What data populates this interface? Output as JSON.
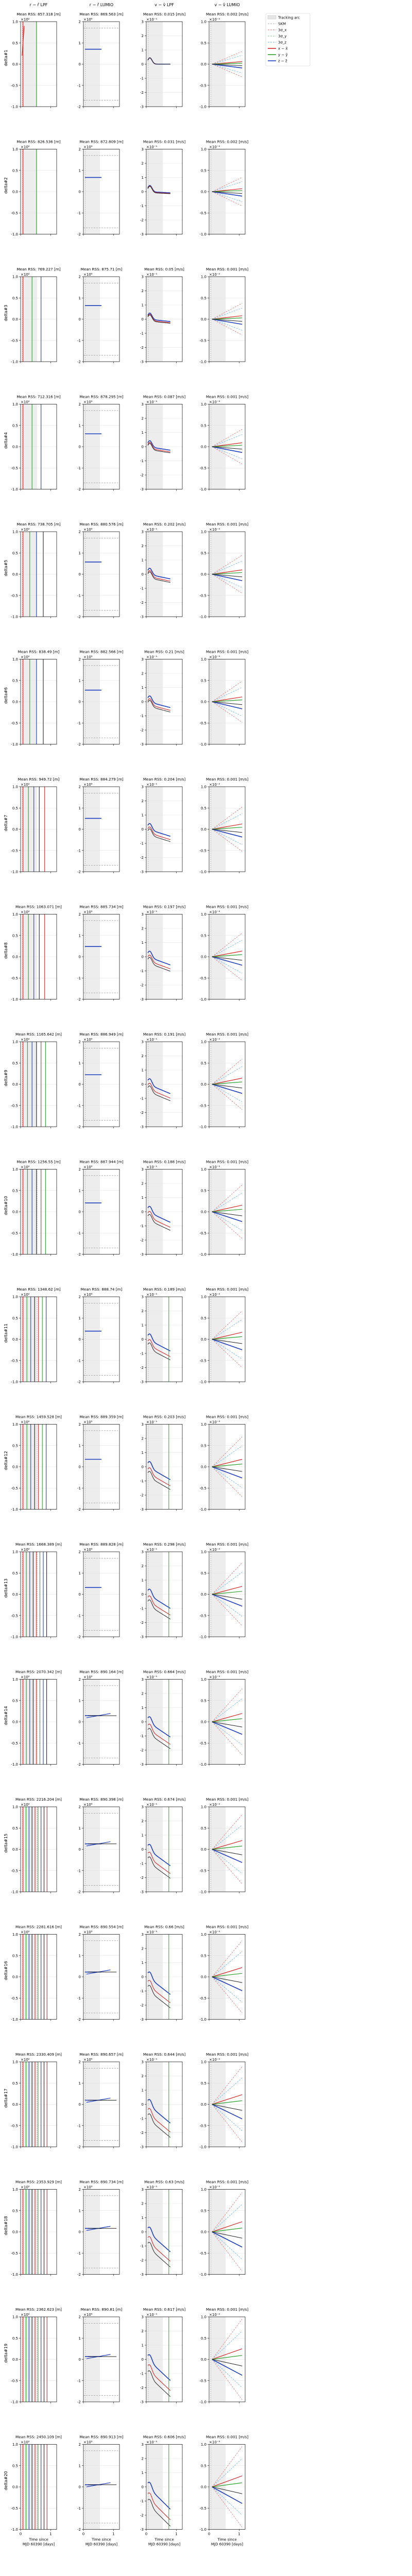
{
  "columns": [
    {
      "title": "r − r̂ LPF",
      "unit": "m",
      "yscale": "×10²",
      "ylim": [
        -1,
        1
      ],
      "yticks": [
        "-1.0",
        "-0.5",
        "0.0",
        "0.5",
        "1.0"
      ]
    },
    {
      "title": "r − r̂ LUMIO",
      "unit": "m",
      "yscale": "×10⁵",
      "ylim": [
        -2,
        2
      ],
      "yticks": [
        "-2",
        "-1",
        "0",
        "1",
        "2"
      ]
    },
    {
      "title": "v − v̂ LPF",
      "unit": "m/s",
      "yscale": "×10⁻¹",
      "ylim": [
        -3,
        3
      ],
      "yticks": [
        "-3",
        "-2",
        "-1",
        "0",
        "1",
        "2",
        "3"
      ]
    },
    {
      "title": "v − v̂ LUMIO",
      "unit": "m/s",
      "yscale": "×10⁻²",
      "ylim": [
        -1,
        1
      ],
      "yticks": [
        "-1.0",
        "-0.5",
        "0.0",
        "0.5",
        "1.0"
      ]
    }
  ],
  "xlabel_line1": "Time since",
  "xlabel_line2": "MJD 60390 [days]",
  "xticks": [
    "0",
    "1"
  ],
  "legend": [
    {
      "label": "Tracking arc",
      "color": "#9e9e9e",
      "style": "band"
    },
    {
      "label": "SKM",
      "color": "#b0b0b0",
      "style": "dash"
    },
    {
      "label": "3σ_x",
      "color": "#e57373",
      "style": "dash"
    },
    {
      "label": "3σ_y",
      "color": "#81c784",
      "style": "dash"
    },
    {
      "label": "3σ_z",
      "color": "#64b5f6",
      "style": "dash"
    },
    {
      "label": "x − x̂",
      "color": "#d62728",
      "style": "solid"
    },
    {
      "label": "y − ŷ",
      "color": "#2ca02c",
      "style": "solid"
    },
    {
      "label": "z − ẑ",
      "color": "#1f3fbf",
      "style": "solid"
    }
  ],
  "chart_data": {
    "type": "line",
    "title": "",
    "rows": [
      {
        "ylabel": "delta#1",
        "rss": [
          "Mean RSS: 857.318 [m]",
          "Mean RSS: 869.563 [m]",
          "Mean RSS: 0.015 [m/s]",
          "Mean RSS: 0.002 [m/s]"
        ]
      },
      {
        "ylabel": "delta#2",
        "rss": [
          "Mean RSS: 826.536 [m]",
          "Mean RSS: 872.809 [m]",
          "Mean RSS: 0.031 [m/s]",
          "Mean RSS: 0.002 [m/s]"
        ]
      },
      {
        "ylabel": "delta#3",
        "rss": [
          "Mean RSS: 769.227 [m]",
          "Mean RSS: 875.71 [m]",
          "Mean RSS: 0.05 [m/s]",
          "Mean RSS: 0.001 [m/s]"
        ]
      },
      {
        "ylabel": "delta#4",
        "rss": [
          "Mean RSS: 712.316 [m]",
          "Mean RSS: 878.295 [m]",
          "Mean RSS: 0.087 [m/s]",
          "Mean RSS: 0.001 [m/s]"
        ]
      },
      {
        "ylabel": "delta#5",
        "rss": [
          "Mean RSS: 738.705 [m]",
          "Mean RSS: 880.576 [m]",
          "Mean RSS: 0.202 [m/s]",
          "Mean RSS: 0.001 [m/s]"
        ]
      },
      {
        "ylabel": "delta#6",
        "rss": [
          "Mean RSS: 838.49 [m]",
          "Mean RSS: 882.566 [m]",
          "Mean RSS: 0.21 [m/s]",
          "Mean RSS: 0.001 [m/s]"
        ]
      },
      {
        "ylabel": "delta#7",
        "rss": [
          "Mean RSS: 949.72 [m]",
          "Mean RSS: 884.279 [m]",
          "Mean RSS: 0.204 [m/s]",
          "Mean RSS: 0.001 [m/s]"
        ]
      },
      {
        "ylabel": "delta#8",
        "rss": [
          "Mean RSS: 1063.071 [m]",
          "Mean RSS: 885.734 [m]",
          "Mean RSS: 0.197 [m/s]",
          "Mean RSS: 0.001 [m/s]"
        ]
      },
      {
        "ylabel": "delta#9",
        "rss": [
          "Mean RSS: 1165.642 [m]",
          "Mean RSS: 886.949 [m]",
          "Mean RSS: 0.191 [m/s]",
          "Mean RSS: 0.001 [m/s]"
        ]
      },
      {
        "ylabel": "delta#10",
        "rss": [
          "Mean RSS: 1256.55 [m]",
          "Mean RSS: 887.944 [m]",
          "Mean RSS: 0.188 [m/s]",
          "Mean RSS: 0.001 [m/s]"
        ]
      },
      {
        "ylabel": "delta#11",
        "rss": [
          "Mean RSS: 1348.62 [m]",
          "Mean RSS: 888.74 [m]",
          "Mean RSS: 0.189 [m/s]",
          "Mean RSS: 0.001 [m/s]"
        ]
      },
      {
        "ylabel": "delta#12",
        "rss": [
          "Mean RSS: 1459.528 [m]",
          "Mean RSS: 889.359 [m]",
          "Mean RSS: 0.203 [m/s]",
          "Mean RSS: 0.001 [m/s]"
        ]
      },
      {
        "ylabel": "delta#13",
        "rss": [
          "Mean RSS: 1668.389 [m]",
          "Mean RSS: 889.828 [m]",
          "Mean RSS: 0.298 [m/s]",
          "Mean RSS: 0.001 [m/s]"
        ]
      },
      {
        "ylabel": "delta#14",
        "rss": [
          "Mean RSS: 2070.342 [m]",
          "Mean RSS: 890.164 [m]",
          "Mean RSS: 0.664 [m/s]",
          "Mean RSS: 0.001 [m/s]"
        ]
      },
      {
        "ylabel": "delta#15",
        "rss": [
          "Mean RSS: 2216.204 [m]",
          "Mean RSS: 890.398 [m]",
          "Mean RSS: 0.674 [m/s]",
          "Mean RSS: 0.001 [m/s]"
        ]
      },
      {
        "ylabel": "delta#16",
        "rss": [
          "Mean RSS: 2281.616 [m]",
          "Mean RSS: 890.554 [m]",
          "Mean RSS: 0.66 [m/s]",
          "Mean RSS: 0.001 [m/s]"
        ]
      },
      {
        "ylabel": "delta#17",
        "rss": [
          "Mean RSS: 2330.409 [m]",
          "Mean RSS: 890.657 [m]",
          "Mean RSS: 0.644 [m/s]",
          "Mean RSS: 0.001 [m/s]"
        ]
      },
      {
        "ylabel": "delta#18",
        "rss": [
          "Mean RSS: 2353.929 [m]",
          "Mean RSS: 890.734 [m]",
          "Mean RSS: 0.63 [m/s]",
          "Mean RSS: 0.001 [m/s]"
        ]
      },
      {
        "ylabel": "delta#19",
        "rss": [
          "Mean RSS: 2362.623 [m]",
          "Mean RSS: 890.81 [m]",
          "Mean RSS: 0.617 [m/s]",
          "Mean RSS: 0.001 [m/s]"
        ]
      },
      {
        "ylabel": "delta#20",
        "rss": [
          "Mean RSS: 2450.109 [m]",
          "Mean RSS: 890.913 [m]",
          "Mean RSS: 0.606 [m/s]",
          "Mean RSS: 0.001 [m/s]"
        ]
      }
    ],
    "xlim": [
      0,
      1.2
    ],
    "series": [
      {
        "name": "x − x̂",
        "color": "#d62728"
      },
      {
        "name": "y − ŷ",
        "color": "#2ca02c"
      },
      {
        "name": "z − ẑ",
        "color": "#1f3fbf"
      }
    ]
  }
}
